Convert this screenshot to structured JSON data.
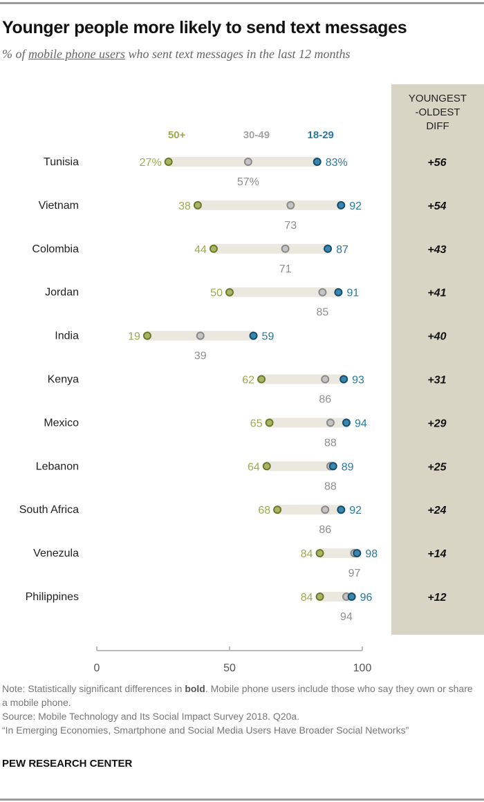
{
  "title": "Younger people more likely to send text messages",
  "subtitle": {
    "prefix": "% of ",
    "underlined": "mobile phone users",
    "suffix": " who sent text messages in the last 12 months"
  },
  "diff_header": "YOUNGEST\n-OLDEST\nDIFF",
  "notes": {
    "note_prefix": "Note: Statistically significant differences in ",
    "note_bold": "bold",
    "note_suffix": ". Mobile phone users include those who say they own or share a mobile phone.",
    "source": "Source: Mobile Technology and Its Social Impact Survey 2018. Q20a.",
    "report": "“In Emerging Economies, Smartphone and Social Media Users Have Broader Social Networks”"
  },
  "brand": "PEW RESEARCH CENTER",
  "colors": {
    "age_50_plus": "#9aab4f",
    "age_30_49": "#a3a3a3",
    "age_18_29": "#2a78a0",
    "bar": "#ebe8e0",
    "diff_bg": "#d8d5c5"
  },
  "chart_data": {
    "type": "dot-plot",
    "xlim": [
      0,
      100
    ],
    "xticks": [
      "0",
      "50",
      "100"
    ],
    "series": [
      {
        "name": "50+",
        "key": "age_50_plus"
      },
      {
        "name": "30-49",
        "key": "age_30_49"
      },
      {
        "name": "18-29",
        "key": "age_18_29"
      }
    ],
    "rows": [
      {
        "country": "Tunisia",
        "age_50_plus": 27,
        "age_30_49": 57,
        "age_18_29": 83,
        "diff": "+56",
        "pct": true
      },
      {
        "country": "Vietnam",
        "age_50_plus": 38,
        "age_30_49": 73,
        "age_18_29": 92,
        "diff": "+54"
      },
      {
        "country": "Colombia",
        "age_50_plus": 44,
        "age_30_49": 71,
        "age_18_29": 87,
        "diff": "+43"
      },
      {
        "country": "Jordan",
        "age_50_plus": 50,
        "age_30_49": 85,
        "age_18_29": 91,
        "diff": "+41"
      },
      {
        "country": "India",
        "age_50_plus": 19,
        "age_30_49": 39,
        "age_18_29": 59,
        "diff": "+40"
      },
      {
        "country": "Kenya",
        "age_50_plus": 62,
        "age_30_49": 86,
        "age_18_29": 93,
        "diff": "+31"
      },
      {
        "country": "Mexico",
        "age_50_plus": 65,
        "age_30_49": 88,
        "age_18_29": 94,
        "diff": "+29"
      },
      {
        "country": "Lebanon",
        "age_50_plus": 64,
        "age_30_49": 88,
        "age_18_29": 89,
        "diff": "+25"
      },
      {
        "country": "South Africa",
        "age_50_plus": 68,
        "age_30_49": 86,
        "age_18_29": 92,
        "diff": "+24"
      },
      {
        "country": "Venezula",
        "age_50_plus": 84,
        "age_30_49": 97,
        "age_18_29": 98,
        "diff": "+14"
      },
      {
        "country": "Philippines",
        "age_50_plus": 84,
        "age_30_49": 94,
        "age_18_29": 96,
        "diff": "+12"
      }
    ]
  }
}
